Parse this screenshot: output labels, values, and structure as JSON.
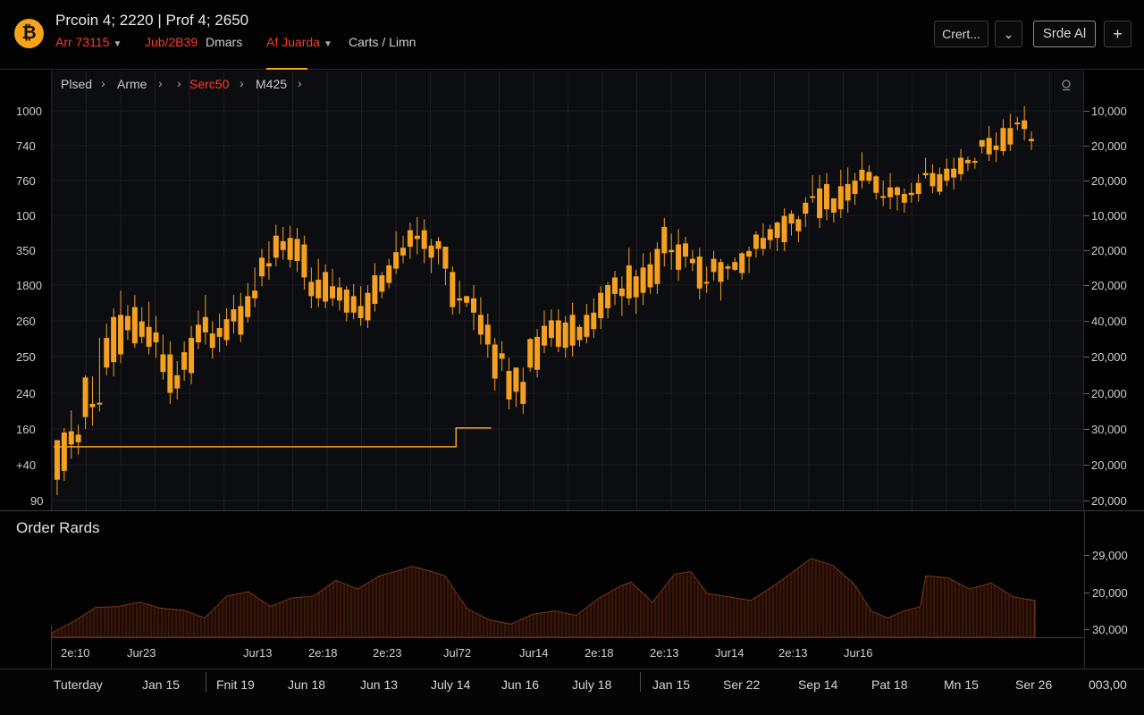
{
  "header": {
    "logo_glyph": "₿",
    "title": "Prcoin 4; 2220 | Prof 4; 2650",
    "sub_items": [
      {
        "text": "Arr 73115",
        "color": "red",
        "caret": true
      },
      {
        "text": "Jub/2B39",
        "color": "red",
        "caret": false
      },
      {
        "text": "Dmars",
        "color": "gray",
        "caret": false
      },
      {
        "text": "Af Juarda",
        "color": "red",
        "caret": true
      },
      {
        "text": "Carts / Limn",
        "color": "gray",
        "caret": false
      }
    ],
    "buttons": {
      "chart": "Crert...",
      "dropdown_glyph": "⌄",
      "side": "Srde Al",
      "add_glyph": "+"
    }
  },
  "breadcrumb": [
    {
      "text": "Plsed",
      "color": "gray"
    },
    {
      "text": "Arme",
      "color": "gray"
    },
    {
      "text": "Serc50",
      "color": "red"
    },
    {
      "text": "M425",
      "color": "gray"
    }
  ],
  "left_axis": [
    "1000",
    "740",
    "760",
    "100",
    "350",
    "1800",
    "260",
    "250",
    "240",
    "160",
    "+40",
    "90"
  ],
  "right_axis": [
    "10,000",
    "20,000",
    "20,000",
    "10,000",
    "20,000",
    "20,000",
    "40,000",
    "20,000",
    "20,000",
    "30,000",
    "20,000",
    "20,000"
  ],
  "order_book": {
    "title": "Order Rards",
    "right_axis": [
      "29,000",
      "20,000",
      "30,000"
    ],
    "x_labels": [
      "2e:10",
      "Jur23",
      "Jur13",
      "2e:18",
      "2e:23",
      "Jul72",
      "Jur14",
      "2e:18",
      "2e:13",
      "Jur14",
      "2e:13",
      "Jur16"
    ]
  },
  "timeline": {
    "labels": [
      "Tuterday",
      "Jan 15",
      "Fnit 19",
      "Jun 18",
      "Jun 13",
      "July 14",
      "Jun 16",
      "July 18",
      "Jan 15",
      "Ser 22",
      "Sep 14",
      "Pat 18",
      "Mn 15",
      "Ser 26",
      "003,00"
    ]
  },
  "colors": {
    "accent": "#f7a21b",
    "alert": "#ff3b22",
    "candle": "#f5a020",
    "background": "#0c0d10"
  },
  "chart_data": {
    "type": "candlestick",
    "candles": [
      {
        "o": 103,
        "c": 139,
        "h": 139,
        "l": 89
      },
      {
        "o": 111,
        "c": 146,
        "h": 150,
        "l": 102
      },
      {
        "o": 135,
        "c": 147,
        "h": 166,
        "l": 122
      },
      {
        "o": 137,
        "c": 144,
        "h": 153,
        "l": 126
      },
      {
        "o": 160,
        "c": 196,
        "h": 198,
        "l": 149
      },
      {
        "o": 172,
        "c": 169,
        "h": 197,
        "l": 152
      },
      {
        "o": 173,
        "c": 173,
        "h": 232,
        "l": 165
      },
      {
        "o": 205,
        "c": 232,
        "h": 245,
        "l": 198
      },
      {
        "o": 210,
        "c": 251,
        "h": 259,
        "l": 197
      },
      {
        "o": 217,
        "c": 253,
        "h": 275,
        "l": 209
      },
      {
        "o": 239,
        "c": 252,
        "h": 262,
        "l": 230
      },
      {
        "o": 260,
        "c": 227,
        "h": 271,
        "l": 223
      },
      {
        "o": 233,
        "c": 247,
        "h": 260,
        "l": 227
      },
      {
        "o": 242,
        "c": 224,
        "h": 265,
        "l": 217
      },
      {
        "o": 228,
        "c": 237,
        "h": 252,
        "l": 214
      },
      {
        "o": 201,
        "c": 217,
        "h": 235,
        "l": 194
      },
      {
        "o": 217,
        "c": 182,
        "h": 229,
        "l": 172
      },
      {
        "o": 186,
        "c": 198,
        "h": 211,
        "l": 176
      },
      {
        "o": 203,
        "c": 219,
        "h": 229,
        "l": 193
      },
      {
        "o": 200,
        "c": 232,
        "h": 243,
        "l": 190
      },
      {
        "o": 244,
        "c": 228,
        "h": 257,
        "l": 222
      },
      {
        "o": 237,
        "c": 251,
        "h": 271,
        "l": 226
      },
      {
        "o": 236,
        "c": 223,
        "h": 247,
        "l": 213
      },
      {
        "o": 241,
        "c": 233,
        "h": 254,
        "l": 219
      },
      {
        "o": 230,
        "c": 249,
        "h": 259,
        "l": 225
      },
      {
        "o": 247,
        "c": 258,
        "h": 271,
        "l": 236
      },
      {
        "o": 235,
        "c": 261,
        "h": 273,
        "l": 228
      },
      {
        "o": 251,
        "c": 270,
        "h": 282,
        "l": 246
      },
      {
        "o": 268,
        "c": 275,
        "h": 296,
        "l": 260
      },
      {
        "o": 288,
        "c": 305,
        "h": 313,
        "l": 279
      },
      {
        "o": 300,
        "c": 297,
        "h": 320,
        "l": 285
      },
      {
        "o": 305,
        "c": 325,
        "h": 335,
        "l": 297
      },
      {
        "o": 320,
        "c": 312,
        "h": 333,
        "l": 303
      },
      {
        "o": 303,
        "c": 323,
        "h": 334,
        "l": 296
      },
      {
        "o": 322,
        "c": 302,
        "h": 332,
        "l": 292
      },
      {
        "o": 317,
        "c": 287,
        "h": 325,
        "l": 276
      },
      {
        "o": 283,
        "c": 270,
        "h": 296,
        "l": 259
      },
      {
        "o": 268,
        "c": 285,
        "h": 304,
        "l": 260
      },
      {
        "o": 292,
        "c": 265,
        "h": 299,
        "l": 259
      },
      {
        "o": 279,
        "c": 268,
        "h": 295,
        "l": 261
      },
      {
        "o": 278,
        "c": 266,
        "h": 287,
        "l": 257
      },
      {
        "o": 276,
        "c": 255,
        "h": 279,
        "l": 247
      },
      {
        "o": 255,
        "c": 270,
        "h": 281,
        "l": 249
      },
      {
        "o": 261,
        "c": 250,
        "h": 279,
        "l": 243
      },
      {
        "o": 248,
        "c": 273,
        "h": 280,
        "l": 241
      },
      {
        "o": 263,
        "c": 289,
        "h": 300,
        "l": 256
      },
      {
        "o": 274,
        "c": 289,
        "h": 292,
        "l": 268
      },
      {
        "o": 282,
        "c": 298,
        "h": 304,
        "l": 277
      },
      {
        "o": 295,
        "c": 310,
        "h": 329,
        "l": 290
      },
      {
        "o": 307,
        "c": 314,
        "h": 325,
        "l": 300
      },
      {
        "o": 315,
        "c": 330,
        "h": 337,
        "l": 304
      },
      {
        "o": 322,
        "c": 325,
        "h": 342,
        "l": 308
      },
      {
        "o": 313,
        "c": 330,
        "h": 340,
        "l": 300
      },
      {
        "o": 316,
        "c": 305,
        "h": 322,
        "l": 291
      },
      {
        "o": 320,
        "c": 313,
        "h": 324,
        "l": 299
      },
      {
        "o": 315,
        "c": 295,
        "h": 314,
        "l": 280
      },
      {
        "o": 292,
        "c": 260,
        "h": 297,
        "l": 253
      },
      {
        "o": 268,
        "c": 266,
        "h": 284,
        "l": 254
      },
      {
        "o": 264,
        "c": 270,
        "h": 270,
        "l": 260
      },
      {
        "o": 268,
        "c": 255,
        "h": 280,
        "l": 239
      },
      {
        "o": 253,
        "c": 235,
        "h": 269,
        "l": 226
      },
      {
        "o": 244,
        "c": 226,
        "h": 254,
        "l": 214
      },
      {
        "o": 226,
        "c": 195,
        "h": 232,
        "l": 184
      },
      {
        "o": 218,
        "c": 213,
        "h": 229,
        "l": 202
      },
      {
        "o": 202,
        "c": 176,
        "h": 214,
        "l": 167
      },
      {
        "o": 205,
        "c": 183,
        "h": 205,
        "l": 169
      },
      {
        "o": 192,
        "c": 172,
        "h": 205,
        "l": 163
      },
      {
        "o": 205,
        "c": 231,
        "h": 232,
        "l": 201
      },
      {
        "o": 203,
        "c": 233,
        "h": 240,
        "l": 196
      },
      {
        "o": 225,
        "c": 243,
        "h": 257,
        "l": 218
      },
      {
        "o": 232,
        "c": 248,
        "h": 258,
        "l": 224
      },
      {
        "o": 248,
        "c": 224,
        "h": 258,
        "l": 219
      },
      {
        "o": 223,
        "c": 246,
        "h": 252,
        "l": 214
      },
      {
        "o": 225,
        "c": 253,
        "h": 264,
        "l": 215
      },
      {
        "o": 230,
        "c": 242,
        "h": 244,
        "l": 224
      },
      {
        "o": 233,
        "c": 253,
        "h": 263,
        "l": 227
      },
      {
        "o": 240,
        "c": 255,
        "h": 268,
        "l": 232
      },
      {
        "o": 250,
        "c": 273,
        "h": 279,
        "l": 240
      },
      {
        "o": 259,
        "c": 280,
        "h": 283,
        "l": 250
      },
      {
        "o": 272,
        "c": 287,
        "h": 293,
        "l": 262
      },
      {
        "o": 277,
        "c": 270,
        "h": 288,
        "l": 252
      },
      {
        "o": 268,
        "c": 298,
        "h": 314,
        "l": 262
      },
      {
        "o": 269,
        "c": 288,
        "h": 294,
        "l": 254
      },
      {
        "o": 273,
        "c": 296,
        "h": 309,
        "l": 262
      },
      {
        "o": 278,
        "c": 299,
        "h": 310,
        "l": 272
      },
      {
        "o": 313,
        "c": 281,
        "h": 319,
        "l": 272
      },
      {
        "o": 333,
        "c": 309,
        "h": 341,
        "l": 297
      },
      {
        "o": 310,
        "c": 312,
        "h": 327,
        "l": 294
      },
      {
        "o": 317,
        "c": 294,
        "h": 331,
        "l": 284
      },
      {
        "o": 318,
        "c": 306,
        "h": 324,
        "l": 296
      },
      {
        "o": 300,
        "c": 304,
        "h": 312,
        "l": 293
      },
      {
        "o": 277,
        "c": 306,
        "h": 314,
        "l": 267
      },
      {
        "o": 282,
        "c": 283,
        "h": 297,
        "l": 273
      },
      {
        "o": 292,
        "c": 304,
        "h": 311,
        "l": 284
      },
      {
        "o": 283,
        "c": 301,
        "h": 304,
        "l": 266
      },
      {
        "o": 295,
        "c": 297,
        "h": 299,
        "l": 285
      },
      {
        "o": 301,
        "c": 294,
        "h": 305,
        "l": 293
      },
      {
        "o": 309,
        "c": 291,
        "h": 310,
        "l": 285
      },
      {
        "o": 306,
        "c": 311,
        "h": 315,
        "l": 291
      },
      {
        "o": 313,
        "c": 326,
        "h": 329,
        "l": 305
      },
      {
        "o": 313,
        "c": 323,
        "h": 336,
        "l": 307
      },
      {
        "o": 321,
        "c": 331,
        "h": 335,
        "l": 313
      },
      {
        "o": 323,
        "c": 337,
        "h": 338,
        "l": 311
      },
      {
        "o": 319,
        "c": 343,
        "h": 350,
        "l": 311
      },
      {
        "o": 336,
        "c": 345,
        "h": 348,
        "l": 325
      },
      {
        "o": 329,
        "c": 340,
        "h": 343,
        "l": 319
      },
      {
        "o": 345,
        "c": 355,
        "h": 360,
        "l": 333
      },
      {
        "o": 360,
        "c": 361,
        "h": 380,
        "l": 355
      },
      {
        "o": 341,
        "c": 368,
        "h": 380,
        "l": 332
      },
      {
        "o": 349,
        "c": 372,
        "h": 382,
        "l": 339
      },
      {
        "o": 346,
        "c": 359,
        "h": 359,
        "l": 337
      },
      {
        "o": 349,
        "c": 370,
        "h": 385,
        "l": 341
      },
      {
        "o": 372,
        "c": 357,
        "h": 387,
        "l": 346
      },
      {
        "o": 363,
        "c": 375,
        "h": 382,
        "l": 353
      },
      {
        "o": 375,
        "c": 385,
        "h": 401,
        "l": 368
      },
      {
        "o": 383,
        "c": 375,
        "h": 389,
        "l": 372
      },
      {
        "o": 364,
        "c": 379,
        "h": 380,
        "l": 358
      },
      {
        "o": 361,
        "c": 360,
        "h": 375,
        "l": 352
      },
      {
        "o": 360,
        "c": 369,
        "h": 382,
        "l": 349
      },
      {
        "o": 369,
        "c": 362,
        "h": 370,
        "l": 348
      },
      {
        "o": 355,
        "c": 363,
        "h": 368,
        "l": 346
      },
      {
        "o": 362,
        "c": 364,
        "h": 373,
        "l": 355
      },
      {
        "o": 373,
        "c": 363,
        "h": 381,
        "l": 356
      },
      {
        "o": 380,
        "c": 382,
        "h": 396,
        "l": 377
      },
      {
        "o": 370,
        "c": 382,
        "h": 390,
        "l": 364
      },
      {
        "o": 381,
        "c": 365,
        "h": 387,
        "l": 362
      },
      {
        "o": 375,
        "c": 386,
        "h": 395,
        "l": 370
      },
      {
        "o": 386,
        "c": 378,
        "h": 396,
        "l": 367
      },
      {
        "o": 381,
        "c": 396,
        "h": 404,
        "l": 375
      },
      {
        "o": 391,
        "c": 394,
        "h": 397,
        "l": 384
      },
      {
        "o": 393,
        "c": 393,
        "h": 396,
        "l": 386
      },
      {
        "o": 406,
        "c": 412,
        "h": 412,
        "l": 400
      },
      {
        "o": 399,
        "c": 414,
        "h": 425,
        "l": 393
      },
      {
        "o": 403,
        "c": 407,
        "h": 419,
        "l": 392
      },
      {
        "o": 402,
        "c": 423,
        "h": 431,
        "l": 398
      },
      {
        "o": 408,
        "c": 423,
        "h": 436,
        "l": 402
      },
      {
        "o": 428,
        "c": 428,
        "h": 433,
        "l": 421
      },
      {
        "o": 422,
        "c": 430,
        "h": 443,
        "l": 412
      },
      {
        "o": 411,
        "c": 413,
        "h": 420,
        "l": 403
      }
    ],
    "overlay_line": [
      {
        "i": 0,
        "y": 133
      },
      {
        "i": 57,
        "y": 133
      },
      {
        "i": 57,
        "y": 150
      },
      {
        "i": 62,
        "y": 150
      }
    ],
    "price_range": [
      80,
      450
    ],
    "order_book_depth": [
      {
        "i": 0,
        "v": 5
      },
      {
        "i": 4,
        "v": 18
      },
      {
        "i": 8,
        "v": 34
      },
      {
        "i": 12,
        "v": 35
      },
      {
        "i": 16,
        "v": 40
      },
      {
        "i": 20,
        "v": 33
      },
      {
        "i": 24,
        "v": 31
      },
      {
        "i": 28,
        "v": 22
      },
      {
        "i": 32,
        "v": 47
      },
      {
        "i": 36,
        "v": 52
      },
      {
        "i": 40,
        "v": 35
      },
      {
        "i": 44,
        "v": 45
      },
      {
        "i": 48,
        "v": 47
      },
      {
        "i": 52,
        "v": 65
      },
      {
        "i": 56,
        "v": 55
      },
      {
        "i": 60,
        "v": 70
      },
      {
        "i": 64,
        "v": 77
      },
      {
        "i": 66,
        "v": 81
      },
      {
        "i": 69,
        "v": 76
      },
      {
        "i": 72,
        "v": 70
      },
      {
        "i": 76,
        "v": 33
      },
      {
        "i": 80,
        "v": 20
      },
      {
        "i": 84,
        "v": 15
      },
      {
        "i": 88,
        "v": 26
      },
      {
        "i": 92,
        "v": 30
      },
      {
        "i": 96,
        "v": 25
      },
      {
        "i": 100,
        "v": 44
      },
      {
        "i": 104,
        "v": 58
      },
      {
        "i": 106,
        "v": 63
      },
      {
        "i": 110,
        "v": 40
      },
      {
        "i": 114,
        "v": 72
      },
      {
        "i": 117,
        "v": 75
      },
      {
        "i": 120,
        "v": 50
      },
      {
        "i": 124,
        "v": 46
      },
      {
        "i": 128,
        "v": 42
      },
      {
        "i": 132,
        "v": 58
      },
      {
        "i": 136,
        "v": 76
      },
      {
        "i": 139,
        "v": 90
      },
      {
        "i": 143,
        "v": 82
      },
      {
        "i": 147,
        "v": 60
      },
      {
        "i": 150,
        "v": 30
      },
      {
        "i": 153,
        "v": 22
      },
      {
        "i": 156,
        "v": 30
      },
      {
        "i": 159,
        "v": 35
      },
      {
        "i": 160,
        "v": 70
      },
      {
        "i": 164,
        "v": 68
      },
      {
        "i": 168,
        "v": 55
      },
      {
        "i": 172,
        "v": 62
      },
      {
        "i": 176,
        "v": 46
      },
      {
        "i": 180,
        "v": 42
      }
    ]
  }
}
